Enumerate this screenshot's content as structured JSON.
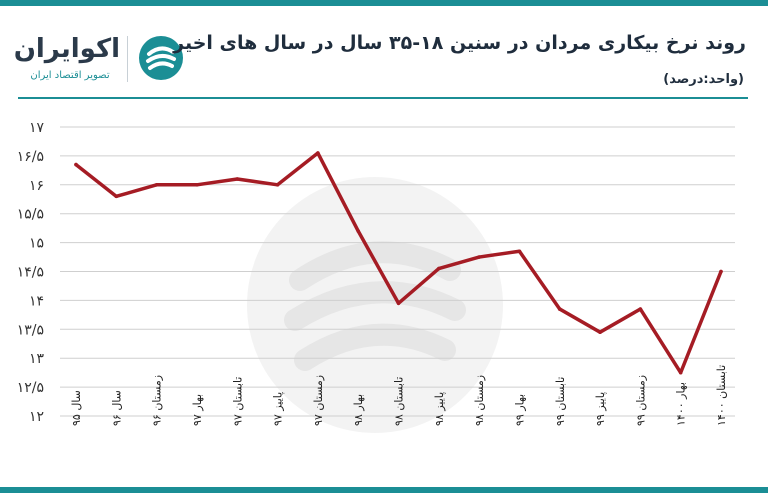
{
  "header": {
    "title": "روند نرخ بیکاری مردان در سنین ۱۸-۳۵ سال در سال های اخیر",
    "subtitle": "(واحد:درصد)",
    "brand_name": "اکوایران",
    "brand_tagline": "تصویر اقتصاد ایران"
  },
  "colors": {
    "accent": "#1b8e95",
    "line": "#a51c24",
    "grid": "#cfcfcf",
    "text": "#1f2d3d"
  },
  "chart_data": {
    "type": "line",
    "title": "روند نرخ بیکاری مردان در سنین ۱۸-۳۵ سال در سال های اخیر",
    "unit": "(واحد:درصد)",
    "categories": [
      "سال ۹۵",
      "سال ۹۶",
      "زمستان ۹۶",
      "بهار ۹۷",
      "تابستان ۹۷",
      "پاییز ۹۷",
      "زمستان ۹۷",
      "بهار ۹۸",
      "تابستان ۹۸",
      "پاییز ۹۸",
      "زمستان ۹۸",
      "بهار ۹۹",
      "تابستان ۹۹",
      "پاییز ۹۹",
      "زمستان ۹۹",
      "بهار ۱۴۰۰",
      "تابستان ۱۴۰۰"
    ],
    "values": [
      16.35,
      15.8,
      16.0,
      16.0,
      16.1,
      16.0,
      16.55,
      15.2,
      13.95,
      14.55,
      14.75,
      14.85,
      13.85,
      13.45,
      13.85,
      12.75,
      14.5
    ],
    "ylim": [
      12,
      17
    ],
    "yticks": [
      {
        "value": 12,
        "label": "۱۲"
      },
      {
        "value": 12.5,
        "label": "۱۲/۵"
      },
      {
        "value": 13,
        "label": "۱۳"
      },
      {
        "value": 13.5,
        "label": "۱۳/۵"
      },
      {
        "value": 14,
        "label": "۱۴"
      },
      {
        "value": 14.5,
        "label": "۱۴/۵"
      },
      {
        "value": 15,
        "label": "۱۵"
      },
      {
        "value": 15.5,
        "label": "۱۵/۵"
      },
      {
        "value": 16,
        "label": "۱۶"
      },
      {
        "value": 16.5,
        "label": "۱۶/۵"
      },
      {
        "value": 17,
        "label": "۱۷"
      }
    ],
    "grid": true,
    "legend": "none"
  }
}
